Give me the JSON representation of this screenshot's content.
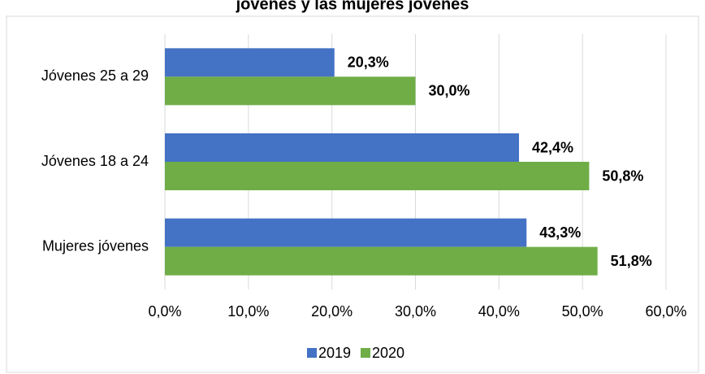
{
  "chart_data": {
    "type": "bar",
    "orientation": "horizontal",
    "title": "jóvenes y las mujeres jóvenes",
    "categories": [
      "Jóvenes 25 a 29",
      "Jóvenes 18 a 24",
      "Mujeres jóvenes"
    ],
    "series": [
      {
        "name": "2019",
        "color": "#4472c4",
        "values": [
          20.3,
          42.4,
          43.3
        ],
        "value_labels": [
          "20,3%",
          "42,4%",
          "43,3%"
        ]
      },
      {
        "name": "2020",
        "color": "#70ad47",
        "values": [
          30.0,
          50.8,
          51.8
        ],
        "value_labels": [
          "30,0%",
          "50,8%",
          "51,8%"
        ]
      }
    ],
    "xlim": [
      0,
      60
    ],
    "xticks": [
      {
        "value": 0,
        "label": "0,0%"
      },
      {
        "value": 10,
        "label": "10,0%"
      },
      {
        "value": 20,
        "label": "20,0%"
      },
      {
        "value": 30,
        "label": "30,0%"
      },
      {
        "value": 40,
        "label": "40,0%"
      },
      {
        "value": 50,
        "label": "50,0%"
      },
      {
        "value": 60,
        "label": "60,0%"
      }
    ],
    "grid": true,
    "legend": "bottom"
  }
}
